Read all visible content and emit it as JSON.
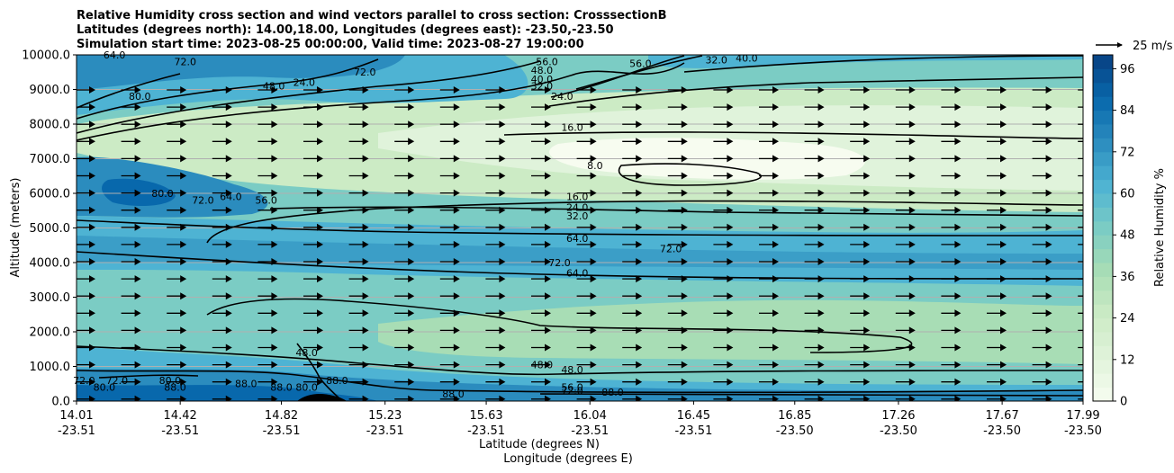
{
  "chart_data": {
    "type": "heatmap",
    "title_lines": [
      "Relative Humidity cross section and wind vectors parallel to cross section: CrosssectionB",
      "Latitudes (degrees north): 14.00,18.00, Longitudes (degrees east): -23.50,-23.50",
      "Simulation start time: 2023-08-25 00:00:00, Valid time: 2023-08-27 19:00:00"
    ],
    "ylabel": "Altitude (meters)",
    "xlabel_lines": [
      "Latitude (degrees N)",
      "Longitude (degrees E)"
    ],
    "ylim": [
      0,
      10000
    ],
    "y_ticks": [
      "0.0",
      "1000.0",
      "2000.0",
      "3000.0",
      "4000.0",
      "5000.0",
      "6000.0",
      "7000.0",
      "8000.0",
      "9000.0",
      "10000.0"
    ],
    "y_tick_values": [
      0,
      1000,
      2000,
      3000,
      4000,
      5000,
      6000,
      7000,
      8000,
      9000,
      10000
    ],
    "x_ticks": [
      {
        "lat": "14.01",
        "lon": "-23.51"
      },
      {
        "lat": "14.42",
        "lon": "-23.51"
      },
      {
        "lat": "14.82",
        "lon": "-23.51"
      },
      {
        "lat": "15.23",
        "lon": "-23.51"
      },
      {
        "lat": "15.63",
        "lon": "-23.51"
      },
      {
        "lat": "16.04",
        "lon": "-23.51"
      },
      {
        "lat": "16.45",
        "lon": "-23.51"
      },
      {
        "lat": "16.85",
        "lon": "-23.50"
      },
      {
        "lat": "17.26",
        "lon": "-23.50"
      },
      {
        "lat": "17.67",
        "lon": "-23.50"
      },
      {
        "lat": "17.99",
        "lon": "-23.50"
      }
    ],
    "x_tick_values": [
      14.01,
      14.42,
      14.82,
      15.23,
      15.63,
      16.04,
      16.45,
      16.85,
      17.26,
      17.67,
      17.99
    ],
    "xlim": [
      14.01,
      17.99
    ],
    "colorbar": {
      "label": "Relative Humidity %",
      "range": [
        0,
        100
      ],
      "ticks": [
        "0",
        "12",
        "24",
        "36",
        "48",
        "60",
        "72",
        "84",
        "96"
      ],
      "tick_values": [
        0,
        12,
        24,
        36,
        48,
        60,
        72,
        84,
        96
      ],
      "colors": [
        "#f7fcf0",
        "#e0f3db",
        "#ccebc5",
        "#a8ddb5",
        "#7bccc4",
        "#4eb3d3",
        "#2b8cbe",
        "#0868ac",
        "#084081"
      ]
    },
    "wind_key_label": "25 m/s",
    "grid": "horizontal",
    "contour_labels": [
      {
        "text": "64.0",
        "lat": 14.16,
        "alt": 9900
      },
      {
        "text": "72.0",
        "lat": 14.44,
        "alt": 9700
      },
      {
        "text": "80.0",
        "lat": 14.26,
        "alt": 8700
      },
      {
        "text": "48.0",
        "lat": 14.79,
        "alt": 9000
      },
      {
        "text": "24.0",
        "lat": 14.91,
        "alt": 9100
      },
      {
        "text": "72.0",
        "lat": 15.15,
        "alt": 9400
      },
      {
        "text": "56.0",
        "lat": 15.87,
        "alt": 9700
      },
      {
        "text": "48.0",
        "lat": 15.85,
        "alt": 9450
      },
      {
        "text": "40.0",
        "lat": 15.85,
        "alt": 9200
      },
      {
        "text": "32.0",
        "lat": 15.85,
        "alt": 9000
      },
      {
        "text": "24.0",
        "lat": 15.93,
        "alt": 8700
      },
      {
        "text": "56.0",
        "lat": 16.24,
        "alt": 9650
      },
      {
        "text": "32.0",
        "lat": 16.54,
        "alt": 9750
      },
      {
        "text": "40.0",
        "lat": 16.66,
        "alt": 9800
      },
      {
        "text": "16.0",
        "lat": 15.97,
        "alt": 7800
      },
      {
        "text": "8.0",
        "lat": 16.06,
        "alt": 6700
      },
      {
        "text": "80.0",
        "lat": 14.35,
        "alt": 5900
      },
      {
        "text": "72.0",
        "lat": 14.51,
        "alt": 5700
      },
      {
        "text": "64.0",
        "lat": 14.62,
        "alt": 5800
      },
      {
        "text": "56.0",
        "lat": 14.76,
        "alt": 5700
      },
      {
        "text": "16.0",
        "lat": 15.99,
        "alt": 5800
      },
      {
        "text": "24.0",
        "lat": 15.99,
        "alt": 5500
      },
      {
        "text": "32.0",
        "lat": 15.99,
        "alt": 5250
      },
      {
        "text": "64.0",
        "lat": 15.99,
        "alt": 4600
      },
      {
        "text": "72.0",
        "lat": 15.92,
        "alt": 3900
      },
      {
        "text": "72.0",
        "lat": 16.36,
        "alt": 4300
      },
      {
        "text": "64.0",
        "lat": 15.99,
        "alt": 3600
      },
      {
        "text": "48.0",
        "lat": 14.92,
        "alt": 1300
      },
      {
        "text": "48.0",
        "lat": 15.85,
        "alt": 950
      },
      {
        "text": "48.0",
        "lat": 15.97,
        "alt": 800
      },
      {
        "text": "56.0",
        "lat": 15.97,
        "alt": 300
      },
      {
        "text": "72.0",
        "lat": 15.97,
        "alt": 200
      },
      {
        "text": "88.0",
        "lat": 16.13,
        "alt": 150
      },
      {
        "text": "88.0",
        "lat": 15.5,
        "alt": 100
      },
      {
        "text": "72.0",
        "lat": 14.04,
        "alt": 500
      },
      {
        "text": "80.0",
        "lat": 14.12,
        "alt": 300
      },
      {
        "text": "72.0",
        "lat": 14.17,
        "alt": 500
      },
      {
        "text": "80.0",
        "lat": 14.38,
        "alt": 500
      },
      {
        "text": "88.0",
        "lat": 14.4,
        "alt": 300
      },
      {
        "text": "88.0",
        "lat": 14.68,
        "alt": 400
      },
      {
        "text": "88.0",
        "lat": 14.82,
        "alt": 300
      },
      {
        "text": "80.0",
        "lat": 14.92,
        "alt": 300
      },
      {
        "text": "88.0",
        "lat": 15.04,
        "alt": 500
      }
    ]
  }
}
